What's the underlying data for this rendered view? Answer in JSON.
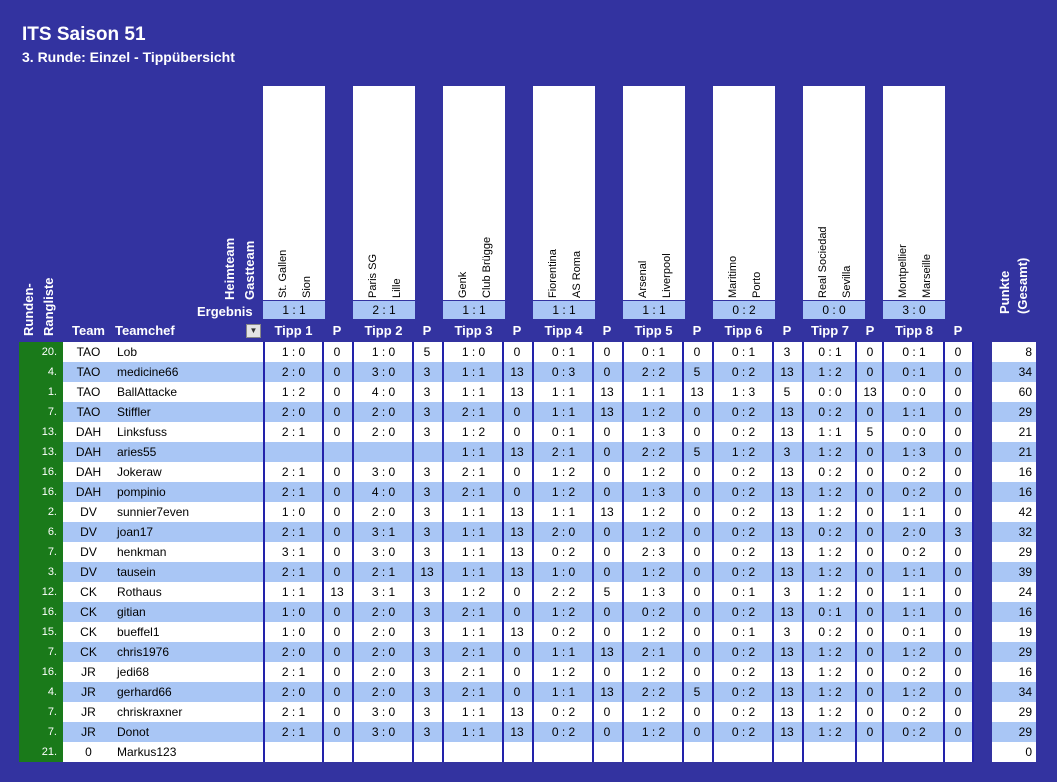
{
  "header": {
    "title": "ITS Saison 51",
    "subtitle": "3. Runde: Einzel - Tippübersicht"
  },
  "labels": {
    "runden": "Runden-",
    "rangliste": "Rangliste",
    "heimteam": "Heimteam",
    "gastteam": "Gastteam",
    "ergebnis": "Ergebnis",
    "team": "Team",
    "teamchef": "Teamchef",
    "p": "P",
    "punkte": "Punkte",
    "gesamt": "(Gesamt)"
  },
  "matches": [
    {
      "home": "St. Gallen",
      "away": "Sion",
      "result": "1 : 1",
      "label": "Tipp 1"
    },
    {
      "home": "Paris SG",
      "away": "Lille",
      "result": "2 : 1",
      "label": "Tipp 2"
    },
    {
      "home": "Genk",
      "away": "Club Brügge",
      "result": "1 : 1",
      "label": "Tipp 3"
    },
    {
      "home": "Fiorentina",
      "away": "AS Roma",
      "result": "1 : 1",
      "label": "Tipp 4"
    },
    {
      "home": "Arsenal",
      "away": "Liverpool",
      "result": "1 : 1",
      "label": "Tipp 5"
    },
    {
      "home": "Maritimo",
      "away": "Porto",
      "result": "0 : 2",
      "label": "Tipp 6"
    },
    {
      "home": "Real Sociedad",
      "away": "Sevilla",
      "result": "0 : 0",
      "label": "Tipp 7"
    },
    {
      "home": "Montpellier",
      "away": "Marseille",
      "result": "3 : 0",
      "label": "Tipp 8"
    }
  ],
  "rows": [
    {
      "rank": "20.",
      "team": "TAO",
      "chef": "Lob",
      "cells": [
        "1 : 0",
        "0",
        "1 : 0",
        "5",
        "1 : 0",
        "0",
        "0 : 1",
        "0",
        "0 : 1",
        "0",
        "0 : 1",
        "3",
        "0 : 1",
        "0",
        "0 : 1",
        "0"
      ],
      "total": "8"
    },
    {
      "rank": "4.",
      "team": "TAO",
      "chef": "medicine66",
      "cells": [
        "2 : 0",
        "0",
        "3 : 0",
        "3",
        "1 : 1",
        "13",
        "0 : 3",
        "0",
        "2 : 2",
        "5",
        "0 : 2",
        "13",
        "1 : 2",
        "0",
        "0 : 1",
        "0"
      ],
      "total": "34"
    },
    {
      "rank": "1.",
      "team": "TAO",
      "chef": "BallAttacke",
      "cells": [
        "1 : 2",
        "0",
        "4 : 0",
        "3",
        "1 : 1",
        "13",
        "1 : 1",
        "13",
        "1 : 1",
        "13",
        "1 : 3",
        "5",
        "0 : 0",
        "13",
        "0 : 0",
        "0"
      ],
      "total": "60"
    },
    {
      "rank": "7.",
      "team": "TAO",
      "chef": "Stiffler",
      "cells": [
        "2 : 0",
        "0",
        "2 : 0",
        "3",
        "2 : 1",
        "0",
        "1 : 1",
        "13",
        "1 : 2",
        "0",
        "0 : 2",
        "13",
        "0 : 2",
        "0",
        "1 : 1",
        "0"
      ],
      "total": "29"
    },
    {
      "rank": "13.",
      "team": "DAH",
      "chef": "Linksfuss",
      "cells": [
        "2 : 1",
        "0",
        "2 : 0",
        "3",
        "1 : 2",
        "0",
        "0 : 1",
        "0",
        "1 : 3",
        "0",
        "0 : 2",
        "13",
        "1 : 1",
        "5",
        "0 : 0",
        "0"
      ],
      "total": "21"
    },
    {
      "rank": "13.",
      "team": "DAH",
      "chef": "aries55",
      "cells": [
        "",
        "",
        "",
        "",
        "1 : 1",
        "13",
        "2 : 1",
        "0",
        "2 : 2",
        "5",
        "1 : 2",
        "3",
        "1 : 2",
        "0",
        "1 : 3",
        "0"
      ],
      "total": "21"
    },
    {
      "rank": "16.",
      "team": "DAH",
      "chef": "Jokeraw",
      "cells": [
        "2 : 1",
        "0",
        "3 : 0",
        "3",
        "2 : 1",
        "0",
        "1 : 2",
        "0",
        "1 : 2",
        "0",
        "0 : 2",
        "13",
        "0 : 2",
        "0",
        "0 : 2",
        "0"
      ],
      "total": "16"
    },
    {
      "rank": "16.",
      "team": "DAH",
      "chef": "pompinio",
      "cells": [
        "2 : 1",
        "0",
        "4 : 0",
        "3",
        "2 : 1",
        "0",
        "1 : 2",
        "0",
        "1 : 3",
        "0",
        "0 : 2",
        "13",
        "1 : 2",
        "0",
        "0 : 2",
        "0"
      ],
      "total": "16"
    },
    {
      "rank": "2.",
      "team": "DV",
      "chef": "sunnier7even",
      "cells": [
        "1 : 0",
        "0",
        "2 : 0",
        "3",
        "1 : 1",
        "13",
        "1 : 1",
        "13",
        "1 : 2",
        "0",
        "0 : 2",
        "13",
        "1 : 2",
        "0",
        "1 : 1",
        "0"
      ],
      "total": "42"
    },
    {
      "rank": "6.",
      "team": "DV",
      "chef": "joan17",
      "cells": [
        "2 : 1",
        "0",
        "3 : 1",
        "3",
        "1 : 1",
        "13",
        "2 : 0",
        "0",
        "1 : 2",
        "0",
        "0 : 2",
        "13",
        "0 : 2",
        "0",
        "2 : 0",
        "3"
      ],
      "total": "32"
    },
    {
      "rank": "7.",
      "team": "DV",
      "chef": "henkman",
      "cells": [
        "3 : 1",
        "0",
        "3 : 0",
        "3",
        "1 : 1",
        "13",
        "0 : 2",
        "0",
        "2 : 3",
        "0",
        "0 : 2",
        "13",
        "1 : 2",
        "0",
        "0 : 2",
        "0"
      ],
      "total": "29"
    },
    {
      "rank": "3.",
      "team": "DV",
      "chef": "tausein",
      "cells": [
        "2 : 1",
        "0",
        "2 : 1",
        "13",
        "1 : 1",
        "13",
        "1 : 0",
        "0",
        "1 : 2",
        "0",
        "0 : 2",
        "13",
        "1 : 2",
        "0",
        "1 : 1",
        "0"
      ],
      "total": "39"
    },
    {
      "rank": "12.",
      "team": "CK",
      "chef": "Rothaus",
      "cells": [
        "1 : 1",
        "13",
        "3 : 1",
        "3",
        "1 : 2",
        "0",
        "2 : 2",
        "5",
        "1 : 3",
        "0",
        "0 : 1",
        "3",
        "1 : 2",
        "0",
        "1 : 1",
        "0"
      ],
      "total": "24"
    },
    {
      "rank": "16.",
      "team": "CK",
      "chef": "gitian",
      "cells": [
        "1 : 0",
        "0",
        "2 : 0",
        "3",
        "2 : 1",
        "0",
        "1 : 2",
        "0",
        "0 : 2",
        "0",
        "0 : 2",
        "13",
        "0 : 1",
        "0",
        "1 : 1",
        "0"
      ],
      "total": "16"
    },
    {
      "rank": "15.",
      "team": "CK",
      "chef": "bueffel1",
      "cells": [
        "1 : 0",
        "0",
        "2 : 0",
        "3",
        "1 : 1",
        "13",
        "0 : 2",
        "0",
        "1 : 2",
        "0",
        "0 : 1",
        "3",
        "0 : 2",
        "0",
        "0 : 1",
        "0"
      ],
      "total": "19"
    },
    {
      "rank": "7.",
      "team": "CK",
      "chef": "chris1976",
      "cells": [
        "2 : 0",
        "0",
        "2 : 0",
        "3",
        "2 : 1",
        "0",
        "1 : 1",
        "13",
        "2 : 1",
        "0",
        "0 : 2",
        "13",
        "1 : 2",
        "0",
        "1 : 2",
        "0"
      ],
      "total": "29"
    },
    {
      "rank": "16.",
      "team": "JR",
      "chef": "jedi68",
      "cells": [
        "2 : 1",
        "0",
        "2 : 0",
        "3",
        "2 : 1",
        "0",
        "1 : 2",
        "0",
        "1 : 2",
        "0",
        "0 : 2",
        "13",
        "1 : 2",
        "0",
        "0 : 2",
        "0"
      ],
      "total": "16"
    },
    {
      "rank": "4.",
      "team": "JR",
      "chef": "gerhard66",
      "cells": [
        "2 : 0",
        "0",
        "2 : 0",
        "3",
        "2 : 1",
        "0",
        "1 : 1",
        "13",
        "2 : 2",
        "5",
        "0 : 2",
        "13",
        "1 : 2",
        "0",
        "1 : 2",
        "0"
      ],
      "total": "34"
    },
    {
      "rank": "7.",
      "team": "JR",
      "chef": "chriskraxner",
      "cells": [
        "2 : 1",
        "0",
        "3 : 0",
        "3",
        "1 : 1",
        "13",
        "0 : 2",
        "0",
        "1 : 2",
        "0",
        "0 : 2",
        "13",
        "1 : 2",
        "0",
        "0 : 2",
        "0"
      ],
      "total": "29"
    },
    {
      "rank": "7.",
      "team": "JR",
      "chef": "Donot",
      "cells": [
        "2 : 1",
        "0",
        "3 : 0",
        "3",
        "1 : 1",
        "13",
        "0 : 2",
        "0",
        "1 : 2",
        "0",
        "0 : 2",
        "13",
        "1 : 2",
        "0",
        "0 : 2",
        "0"
      ],
      "total": "29"
    },
    {
      "rank": "21.",
      "team": "0",
      "chef": "Markus123",
      "cells": [
        "",
        "",
        "",
        "",
        "",
        "",
        "",
        "",
        "",
        "",
        "",
        "",
        "",
        "",
        "",
        ""
      ],
      "total": "0"
    }
  ],
  "colors": {
    "background": "#3333a0",
    "rank_column": "#1a7a1a",
    "row_alt": "#a9c6f5",
    "row": "#ffffff"
  }
}
